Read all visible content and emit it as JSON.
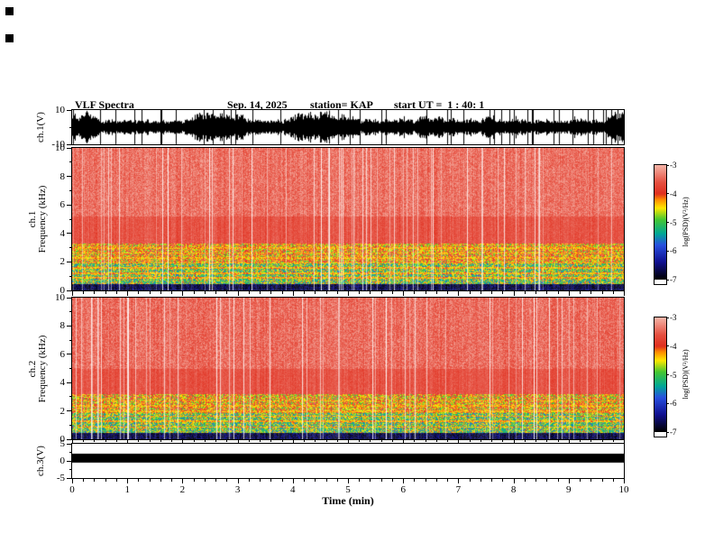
{
  "header": {
    "title": "VLF Spectra",
    "date": "Sep. 14, 2025",
    "station": "station= KAP",
    "start_ut": "start UT =  1 : 40: 1"
  },
  "xaxis": {
    "label": "Time (min)",
    "min": 0,
    "max": 10,
    "ticks": [
      0,
      1,
      2,
      3,
      4,
      5,
      6,
      7,
      8,
      9,
      10
    ]
  },
  "panels": {
    "ch1_wave": {
      "ylabel": "ch.1(V)",
      "ylim": [
        -10,
        10
      ],
      "yticks": [
        10,
        -10
      ]
    },
    "ch1_spec": {
      "channel": "ch.1",
      "ylabel": "Frequency (kHz)",
      "ylim": [
        0,
        10
      ],
      "yticks": [
        0,
        2,
        4,
        6,
        8,
        10
      ]
    },
    "ch2_spec": {
      "channel": "ch.2",
      "ylabel": "Frequency (kHz)",
      "ylim": [
        0,
        10
      ],
      "yticks": [
        0,
        2,
        4,
        6,
        8,
        10
      ]
    },
    "ch3_wave": {
      "ylabel": "ch.3(V)",
      "ylim": [
        -5,
        5
      ],
      "yticks": [
        5,
        0,
        -5
      ]
    }
  },
  "colorbar": {
    "label": "log(PSD)(V²/Hz)",
    "ticks": [
      -3,
      -4,
      -5,
      -6,
      -7
    ],
    "range": [
      -3,
      -7
    ],
    "stops": [
      {
        "v": -3.0,
        "c": "#f6b3a6"
      },
      {
        "v": -3.6,
        "c": "#e65040"
      },
      {
        "v": -4.0,
        "c": "#e03020"
      },
      {
        "v": -4.2,
        "c": "#ff8c00"
      },
      {
        "v": -4.5,
        "c": "#ffe800"
      },
      {
        "v": -4.9,
        "c": "#46c832"
      },
      {
        "v": -5.4,
        "c": "#00a896"
      },
      {
        "v": -5.8,
        "c": "#2850e0"
      },
      {
        "v": -6.4,
        "c": "#101090"
      },
      {
        "v": -7.0,
        "c": "#000000"
      }
    ]
  },
  "chart_data": [
    {
      "type": "line",
      "panel": "ch1_wave",
      "name": "ch.1 raw voltage",
      "xlabel": "Time (min)",
      "x_range": [
        0,
        10
      ],
      "ylabel": "ch.1(V)",
      "ylim": [
        -10,
        10
      ],
      "summary": "Dense black broadband noise waveform; envelope fluctuates between roughly ±4 V and full scale ±10 V continuously over the 10-minute record.",
      "render": {
        "amp_base": 0.38,
        "amp_jitter": 0.62,
        "spike_prob": 0.05
      }
    },
    {
      "type": "heatmap",
      "panel": "ch1_spec",
      "name": "ch.1 spectrogram",
      "xlabel": "Time (min)",
      "x_range": [
        0,
        10
      ],
      "ylabel": "Frequency (kHz)",
      "ylim": [
        0,
        10
      ],
      "value_label": "log(PSD)(V²/Hz)",
      "value_range": [
        -7,
        -3
      ],
      "bands": [
        {
          "f_khz": [
            5.2,
            10.0
          ],
          "mean": -3.45,
          "jitter": 0.28,
          "appearance": "pale red / salmon with white vertical dropout streaks"
        },
        {
          "f_khz": [
            3.3,
            5.2
          ],
          "mean": -3.7,
          "jitter": 0.2,
          "appearance": "saturated red band"
        },
        {
          "f_khz": [
            1.9,
            3.3
          ],
          "mean": -4.25,
          "jitter": 0.75,
          "appearance": "orange/yellow/red speckle with horizontal tone lines"
        },
        {
          "f_khz": [
            0.45,
            1.9
          ],
          "mean": -4.85,
          "jitter": 0.85,
          "appearance": "green-dominated speckle"
        },
        {
          "f_khz": [
            0.0,
            0.45
          ],
          "mean": -6.7,
          "jitter": 0.3,
          "appearance": "near-black noise floor"
        }
      ],
      "tone_lines_khz": [
        0.9,
        1.25,
        1.6,
        1.95,
        2.3,
        2.65,
        3.0
      ],
      "streaks": {
        "prob": 0.1,
        "note": "full-height pale/white dropout columns scattered through the record"
      }
    },
    {
      "type": "heatmap",
      "panel": "ch2_spec",
      "name": "ch.2 spectrogram",
      "xlabel": "Time (min)",
      "x_range": [
        0,
        10
      ],
      "ylabel": "Frequency (kHz)",
      "ylim": [
        0,
        10
      ],
      "value_label": "log(PSD)(V²/Hz)",
      "value_range": [
        -7,
        -3
      ],
      "bands": [
        {
          "f_khz": [
            5.0,
            10.0
          ],
          "mean": -3.5,
          "jitter": 0.3,
          "appearance": "pale red / salmon with white vertical dropout streaks"
        },
        {
          "f_khz": [
            3.2,
            5.0
          ],
          "mean": -3.72,
          "jitter": 0.2,
          "appearance": "saturated red band"
        },
        {
          "f_khz": [
            1.9,
            3.2
          ],
          "mean": -4.3,
          "jitter": 0.75,
          "appearance": "orange/yellow/red speckle with horizontal tone lines"
        },
        {
          "f_khz": [
            0.45,
            1.9
          ],
          "mean": -4.9,
          "jitter": 0.85,
          "appearance": "green-dominated speckle"
        },
        {
          "f_khz": [
            0.0,
            0.45
          ],
          "mean": -6.7,
          "jitter": 0.3,
          "appearance": "near-black noise floor"
        }
      ],
      "tone_lines_khz": [
        0.9,
        1.3,
        1.65,
        2.0,
        2.4,
        2.75
      ],
      "streaks": {
        "prob": 0.1,
        "note": "full-height pale/white dropout columns scattered through the record"
      }
    },
    {
      "type": "line",
      "panel": "ch3_wave",
      "name": "ch.3 raw voltage",
      "xlabel": "Time (min)",
      "x_range": [
        0,
        10
      ],
      "ylabel": "ch.3(V)",
      "ylim": [
        -5,
        5
      ],
      "summary": "Flat saturated black band spanning the entire record, from about -0.5 V to +2 V.",
      "render": {
        "band": [
          -0.5,
          2.1
        ]
      }
    }
  ]
}
